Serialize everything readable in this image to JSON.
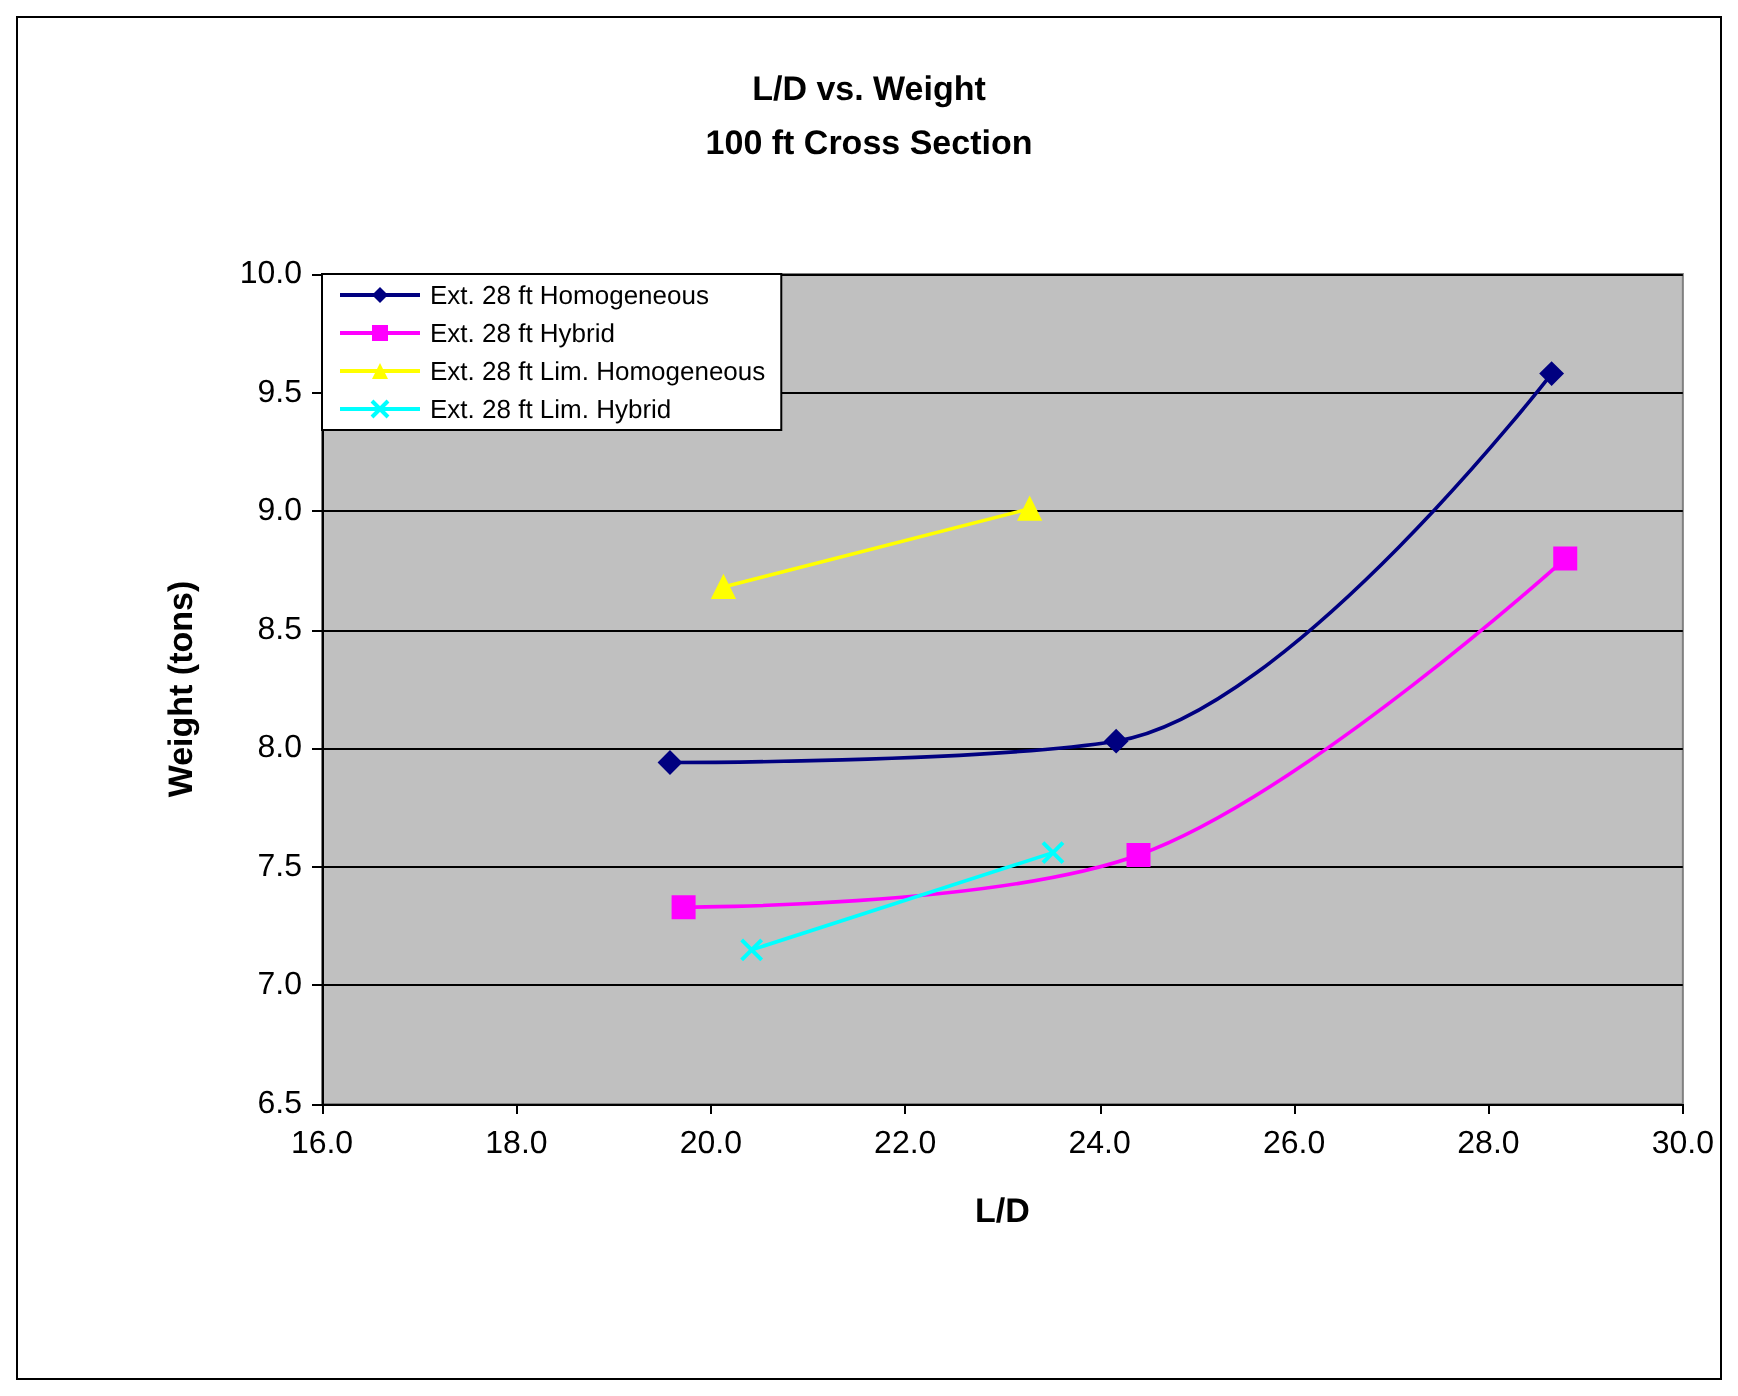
{
  "chart_data": {
    "type": "line",
    "title": "L/D vs. Weight",
    "subtitle": "100 ft Cross Section",
    "xlabel": "L/D",
    "ylabel": "Weight (tons)",
    "xlim": [
      16,
      30
    ],
    "xticks": [
      {
        "value": 16,
        "label": "16.0"
      },
      {
        "value": 18,
        "label": "18.0"
      },
      {
        "value": 20,
        "label": "20.0"
      },
      {
        "value": 22,
        "label": "22.0"
      },
      {
        "value": 24,
        "label": "24.0"
      },
      {
        "value": 26,
        "label": "26.0"
      },
      {
        "value": 28,
        "label": "28.0"
      },
      {
        "value": 30,
        "label": "30.0"
      }
    ],
    "ylim": [
      6.5,
      10
    ],
    "yticks": [
      {
        "value": 6.5,
        "label": "6.5"
      },
      {
        "value": 7,
        "label": "7.0"
      },
      {
        "value": 7.5,
        "label": "7.5"
      },
      {
        "value": 8,
        "label": "8.0"
      },
      {
        "value": 8.5,
        "label": "8.5"
      },
      {
        "value": 9,
        "label": "9.0"
      },
      {
        "value": 9.5,
        "label": "9.5"
      },
      {
        "value": 10,
        "label": "10.0"
      }
    ],
    "grid": "y",
    "legend": "top left",
    "series": [
      {
        "name": "Ext. 28 ft Homogeneous",
        "color": "#000080",
        "marker": "diamond",
        "x": [
          19.58,
          24.17,
          28.65
        ],
        "values": [
          7.94,
          8.03,
          9.58
        ]
      },
      {
        "name": "Ext. 28 ft Hybrid",
        "color": "#ff00ff",
        "marker": "square",
        "x": [
          19.72,
          24.4,
          28.79
        ],
        "values": [
          7.33,
          7.55,
          8.8
        ]
      },
      {
        "name": "Ext. 28 ft Lim. Homogeneous",
        "color": "#ffff00",
        "marker": "triangle",
        "x": [
          20.13,
          23.28
        ],
        "values": [
          8.68,
          9.01
        ]
      },
      {
        "name": "Ext. 28 ft Lim. Hybrid",
        "color": "#00ffff",
        "marker": "cross",
        "x": [
          20.42,
          23.52
        ],
        "values": [
          7.15,
          7.56
        ]
      }
    ]
  }
}
